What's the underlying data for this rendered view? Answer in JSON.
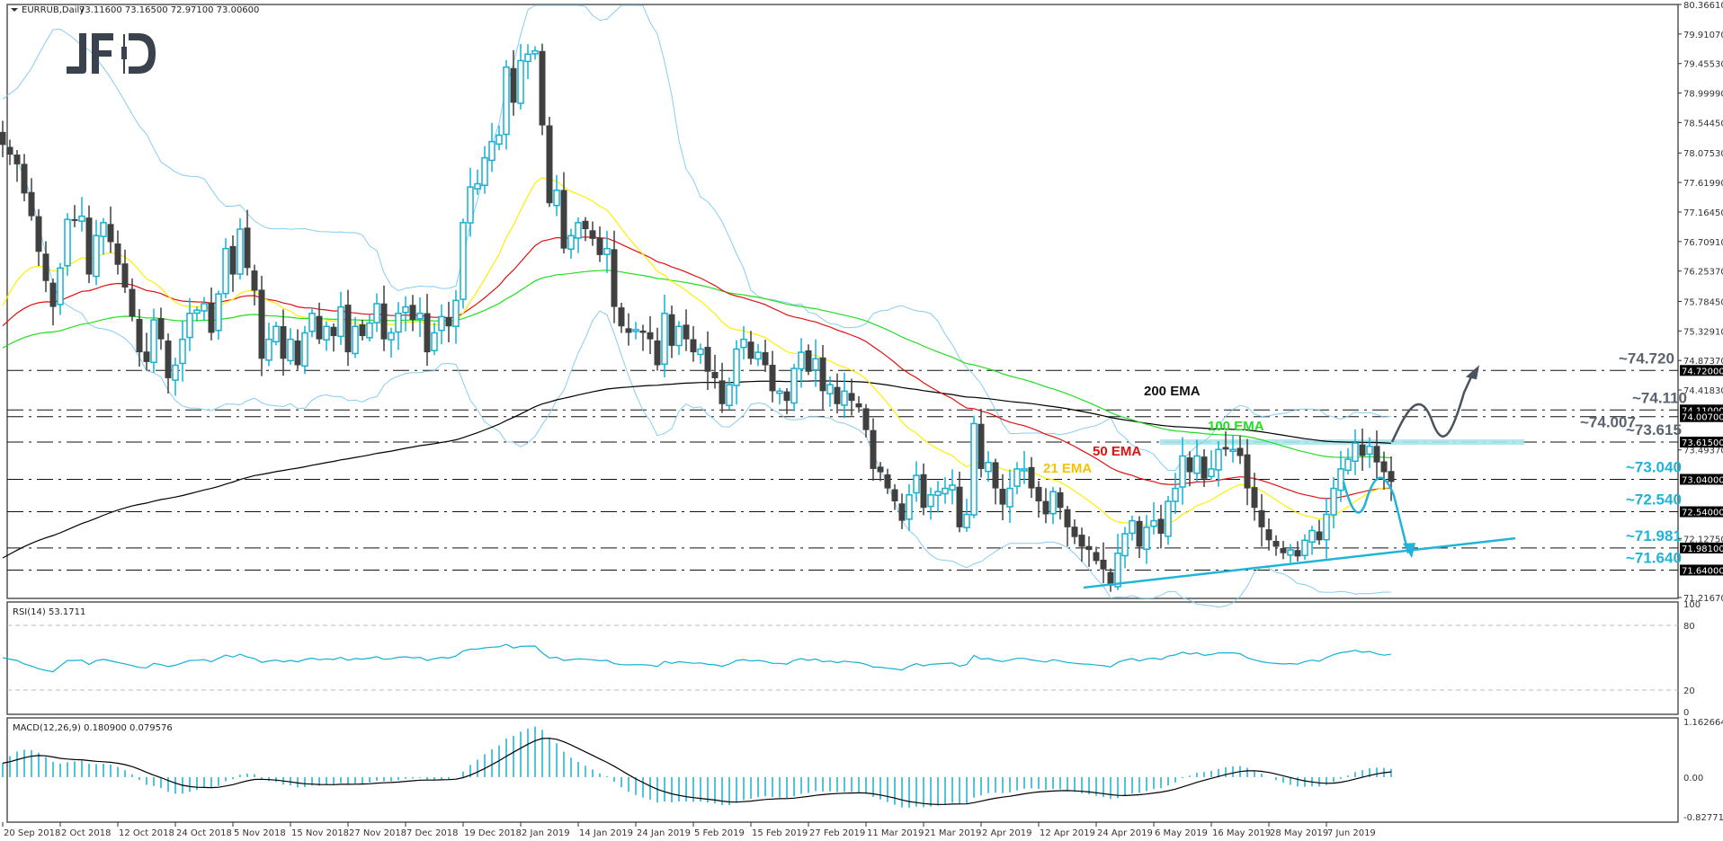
{
  "header": {
    "symbol": "EURRUB,Daily",
    "ohlc": "73.11600 73.16500 72.97100 73.00600"
  },
  "logo": "JFD",
  "price_axis": {
    "ticks": [
      "80.36610",
      "79.91070",
      "79.45530",
      "78.99990",
      "78.54450",
      "78.07530",
      "77.61990",
      "77.16450",
      "76.70910",
      "76.25370",
      "75.78450",
      "75.32910",
      "74.87370",
      "74.41830",
      "73.49370",
      "72.12750",
      "71.21670"
    ],
    "tick_values": [
      80.3661,
      79.9107,
      79.4553,
      78.9999,
      78.5445,
      78.0753,
      77.6199,
      77.1645,
      76.7091,
      76.2537,
      75.7845,
      75.3291,
      74.8737,
      74.4183,
      73.4937,
      72.1275,
      71.2167
    ],
    "min": 71.2167,
    "max": 80.3661
  },
  "levels": [
    {
      "value": 74.72,
      "tag": "74.72000",
      "label": "~74.720",
      "color": "#5a6470"
    },
    {
      "value": 74.11,
      "tag": "74.11000",
      "label": "~74.110",
      "color": "#5a6470"
    },
    {
      "value": 74.007,
      "tag": "74.00700",
      "label": "~74.007",
      "color": "#5a6470"
    },
    {
      "value": 73.615,
      "tag": "73.61500",
      "label": "~73.615",
      "color": "#5a6470"
    },
    {
      "value": 73.04,
      "tag": "73.04000",
      "label": "~73.040",
      "color": "#1fb4d8"
    },
    {
      "value": 72.54,
      "tag": "72.54000",
      "label": "~72.540",
      "color": "#1fb4d8"
    },
    {
      "value": 71.981,
      "tag": "71.98100",
      "label": "~71.981",
      "color": "#1fb4d8"
    },
    {
      "value": 71.64,
      "tag": "71.64000",
      "label": "~71.640",
      "color": "#1fb4d8"
    }
  ],
  "ema_labels": [
    {
      "text": "200 EMA",
      "color": "#111111"
    },
    {
      "text": "100 EMA",
      "color": "#22dd22"
    },
    {
      "text": "50 EMA",
      "color": "#e01010"
    },
    {
      "text": "21 EMA",
      "color": "#f5c400"
    }
  ],
  "colors": {
    "bull": "#12b0d4",
    "bear": "#404040",
    "bands": "#87cdf0",
    "ema21": "#ffee00",
    "ema50": "#e01010",
    "ema100": "#22dd22",
    "ema200": "#000000",
    "rsi": "#12b0d4",
    "macd_hist": "#12b0d4",
    "macd_signal": "#000000",
    "zone": "#a8e6ec",
    "arrow_up": "#4a545e",
    "arrow_down": "#1fb4d8"
  },
  "rsi": {
    "label": "RSI(14) 53.1711",
    "ticks": [
      "100",
      "80",
      "20",
      "0"
    ]
  },
  "macd": {
    "label": "MACD(12,26,9) 0.180900 0.079576",
    "ticks": [
      "1.162664",
      "0.00",
      "-0.827713"
    ]
  },
  "date_axis": [
    "20 Sep 2018",
    "2 Oct 2018",
    "12 Oct 2018",
    "24 Oct 2018",
    "5 Nov 2018",
    "15 Nov 2018",
    "27 Nov 2018",
    "7 Dec 2018",
    "19 Dec 2018",
    "2 Jan 2019",
    "14 Jan 2019",
    "24 Jan 2019",
    "5 Feb 2019",
    "15 Feb 2019",
    "27 Feb 2019",
    "11 Mar 2019",
    "21 Mar 2019",
    "2 Apr 2019",
    "12 Apr 2019",
    "24 Apr 2019",
    "6 May 2019",
    "16 May 2019",
    "28 May 2019",
    "7 Jun 2019"
  ],
  "chart_data": {
    "type": "candlestick",
    "title": "EURRUB,Daily",
    "indicators": [
      "EMA 21",
      "EMA 50",
      "EMA 100",
      "EMA 200",
      "Bollinger Bands",
      "RSI(14)",
      "MACD(12,26,9)"
    ],
    "closes": [
      78.2,
      78.05,
      77.9,
      77.45,
      77.1,
      76.55,
      76.1,
      75.7,
      76.3,
      77.05,
      77.05,
      77.1,
      76.2,
      76.8,
      77.0,
      76.7,
      76.35,
      76.0,
      75.55,
      75.0,
      74.85,
      75.5,
      75.2,
      74.6,
      74.8,
      75.2,
      75.6,
      75.65,
      75.75,
      75.3,
      75.9,
      76.6,
      76.2,
      76.9,
      76.3,
      75.95,
      74.9,
      75.2,
      75.4,
      74.9,
      75.2,
      74.8,
      75.3,
      75.6,
      75.2,
      75.4,
      75.25,
      75.7,
      75.0,
      75.4,
      75.25,
      75.45,
      75.75,
      75.2,
      75.3,
      75.6,
      75.7,
      75.5,
      75.6,
      75.0,
      75.3,
      75.55,
      75.4,
      75.8,
      77.0,
      77.55,
      77.6,
      78.0,
      78.25,
      78.35,
      79.4,
      78.85,
      79.5,
      79.6,
      79.65,
      78.5,
      77.3,
      77.5,
      76.6,
      76.8,
      77.0,
      76.9,
      76.75,
      76.5,
      76.6,
      75.7,
      75.4,
      75.3,
      75.35,
      75.3,
      75.2,
      74.8,
      75.6,
      75.1,
      75.4,
      75.2,
      75.0,
      75.05,
      74.7,
      74.6,
      74.2,
      74.5,
      75.05,
      75.2,
      74.9,
      75.0,
      74.8,
      74.4,
      74.4,
      74.25,
      74.75,
      75.0,
      74.7,
      74.9,
      74.4,
      74.5,
      74.2,
      74.4,
      74.25,
      74.15,
      73.8,
      73.2,
      73.15,
      72.9,
      72.7,
      72.4,
      72.8,
      73.1,
      72.6,
      72.8,
      72.85,
      72.9,
      72.95,
      72.3,
      72.5,
      73.9,
      73.2,
      73.3,
      72.9,
      72.65,
      72.9,
      73.2,
      73.2,
      72.9,
      72.7,
      72.5,
      72.85,
      72.6,
      72.3,
      72.15,
      72.0,
      71.95,
      71.78,
      71.65,
      71.4,
      71.9,
      72.2,
      72.4,
      72.0,
      72.3,
      72.4,
      72.2,
      72.7,
      72.9,
      73.4,
      73.15,
      73.4,
      73.05,
      73.2,
      73.5,
      73.5,
      73.5,
      73.4,
      72.9,
      72.6,
      72.3,
      72.1,
      72.0,
      71.9,
      71.95,
      71.85,
      72.1,
      72.25,
      72.1,
      72.5,
      72.9,
      73.2,
      73.35,
      73.6,
      73.4,
      73.55,
      73.3,
      73.15,
      73.0
    ],
    "levels": [
      74.72,
      74.11,
      74.007,
      73.615,
      73.04,
      72.54,
      71.981,
      71.64
    ],
    "rsi_last": 53.1711,
    "macd_last": [
      0.1809,
      0.079576
    ],
    "ylim": [
      71.2167,
      80.3661
    ],
    "x_range": [
      "20 Sep 2018",
      "7 Jun 2019"
    ]
  }
}
